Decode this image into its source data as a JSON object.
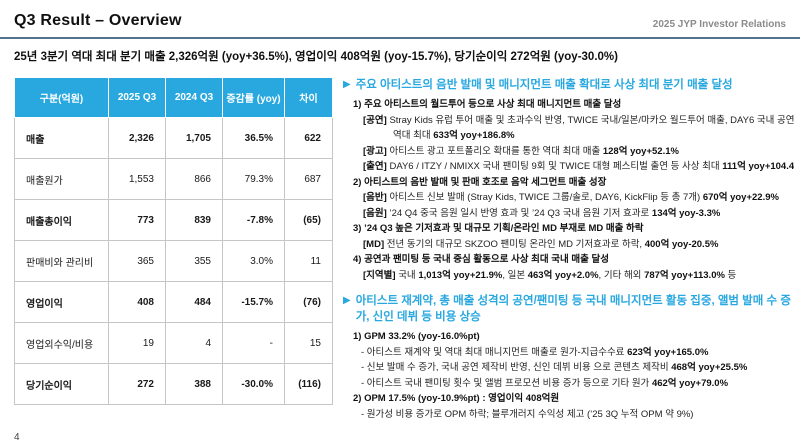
{
  "page": {
    "title": "Q3 Result – Overview",
    "ir_label": "2025 JYP Investor Relations",
    "subtitle": "25년 3분기 역대 최대 분기 매출 2,326억원 (yoy+36.5%), 영업이익 408억원 (yoy-15.7%), 당기순이익 272억원 (yoy-30.0%)",
    "page_number": "4"
  },
  "colors": {
    "accent_blue": "#29a8e0",
    "header_rule": "#53738f",
    "table_border": "#c6c6c6",
    "muted": "#8a8a8a"
  },
  "table": {
    "columns": [
      "구분(억원)",
      "2025 Q3",
      "2024 Q3",
      "증감률 (yoy)",
      "차이"
    ],
    "rows": [
      {
        "label": "매출",
        "bold": true,
        "values": [
          "2,326",
          "1,705",
          "36.5%",
          "622"
        ]
      },
      {
        "label": "매출원가",
        "bold": false,
        "values": [
          "1,553",
          "866",
          "79.3%",
          "687"
        ]
      },
      {
        "label": "매출총이익",
        "bold": true,
        "values": [
          "773",
          "839",
          "-7.8%",
          "(65)"
        ]
      },
      {
        "label": "판매비와 관리비",
        "bold": false,
        "values": [
          "365",
          "355",
          "3.0%",
          "11"
        ]
      },
      {
        "label": "영업이익",
        "bold": true,
        "values": [
          "408",
          "484",
          "-15.7%",
          "(76)"
        ]
      },
      {
        "label": "영업외수익/비용",
        "bold": false,
        "values": [
          "19",
          "4",
          "-",
          "15"
        ]
      },
      {
        "label": "당기순이익",
        "bold": true,
        "values": [
          "272",
          "388",
          "-30.0%",
          "(116)"
        ]
      }
    ]
  },
  "right": {
    "marker": "▶",
    "sections": [
      {
        "heading": "주요 아티스트의 음반 발매 및 매니지먼트 매출 확대로 사상 최대 분기 매출 달성",
        "lines": [
          {
            "type": "num",
            "parts": [
              {
                "t": "1) 주요 아티스트의 월드투어 등으로 사상 최대 매니지먼트 매출 달성",
                "b": true
              }
            ]
          },
          {
            "type": "tag",
            "parts": [
              {
                "t": "[공연] ",
                "b": true
              },
              {
                "t": "Stray Kids 유럽 투어 매출 및 초과수익 반영, TWICE 국내/일본/마카오 월드투어 매출, DAY6 국내 공연 등"
              }
            ]
          },
          {
            "type": "cont",
            "parts": [
              {
                "t": "역대 최대 "
              },
              {
                "t": "633억 yoy+186.8%",
                "b": true
              }
            ]
          },
          {
            "type": "tag",
            "parts": [
              {
                "t": "[광고] ",
                "b": true
              },
              {
                "t": "아티스트 광고 포트폴리오 확대를 통한 역대 최대 매출 "
              },
              {
                "t": "128억 yoy+52.1%",
                "b": true
              }
            ]
          },
          {
            "type": "tag",
            "parts": [
              {
                "t": "[출연] ",
                "b": true
              },
              {
                "t": "DAY6 / ITZY / NMIXX 국내 팬미팅 9회 및 TWICE 대형 페스티벌 출연 등 사상 최대 "
              },
              {
                "t": "111억 yoy+104.4%",
                "b": true
              }
            ]
          },
          {
            "type": "num",
            "parts": [
              {
                "t": "2) 아티스트의 음반 발매 및 판매 호조로 음악 세그먼트 매출 성장",
                "b": true
              }
            ]
          },
          {
            "type": "tag",
            "parts": [
              {
                "t": "[음반] ",
                "b": true
              },
              {
                "t": "아티스트 신보 발매 (Stray Kids, TWICE 그룹/솔로, DAY6, KickFlip 등 총 7개) "
              },
              {
                "t": "670억 yoy+22.9%",
                "b": true
              }
            ]
          },
          {
            "type": "tag",
            "parts": [
              {
                "t": "[음원] ",
                "b": true
              },
              {
                "t": "’24 Q4 중국 음원 일시 반영 효과 및 ’24 Q3 국내 음원 기저 효과로 "
              },
              {
                "t": "134억 yoy-3.3%",
                "b": true
              }
            ]
          },
          {
            "type": "num",
            "parts": [
              {
                "t": "3) ’24 Q3 높은 기저효과 및 대규모 기획/온라인 MD 부재로 MD 매출 하락",
                "b": true
              }
            ]
          },
          {
            "type": "tag",
            "parts": [
              {
                "t": "[MD] ",
                "b": true
              },
              {
                "t": "전년 동기의 대규모 SKZOO 팬미팅 온라인 MD 기저효과로 하락, "
              },
              {
                "t": "400억 yoy-20.5%",
                "b": true
              }
            ]
          },
          {
            "type": "num",
            "parts": [
              {
                "t": "4) 공연과 팬미팅 등 국내 중심 활동으로 사상 최대 국내 매출 달성",
                "b": true
              }
            ]
          },
          {
            "type": "tag",
            "parts": [
              {
                "t": "[지역별] ",
                "b": true
              },
              {
                "t": "국내 "
              },
              {
                "t": "1,013억 yoy+21.9%",
                "b": true
              },
              {
                "t": ", 일본 "
              },
              {
                "t": "463억 yoy+2.0%",
                "b": true
              },
              {
                "t": ", 기타 해외 "
              },
              {
                "t": "787억 yoy+113.0%",
                "b": true
              },
              {
                "t": " 등"
              }
            ]
          }
        ]
      },
      {
        "heading": "아티스트 재계약, 총 매출 성격의 공연/팬미팅 등 국내 매니지먼트 활동 집중, 앨범 발매 수 증가, 신인 데뷔 등 비용 상승",
        "lines": [
          {
            "type": "num",
            "parts": [
              {
                "t": "1) GPM 33.2% (yoy-16.0%pt)",
                "b": true
              }
            ]
          },
          {
            "type": "dash",
            "parts": [
              {
                "t": "- 아티스트 재계약 및 역대 최대 매니지먼트 매출로 원가-지급수수료 "
              },
              {
                "t": "623억 yoy+165.0%",
                "b": true
              }
            ]
          },
          {
            "type": "dash",
            "parts": [
              {
                "t": "- 신보 발매 수 증가, 국내 공연 제작비 반영, 신인 데뷔 비용 으로 콘텐츠 제작비 "
              },
              {
                "t": "468억 yoy+25.5%",
                "b": true
              }
            ]
          },
          {
            "type": "dash",
            "parts": [
              {
                "t": "- 아티스트 국내 팬미팅 횟수 및 앨범 프로모션 비용 증가 등으로 기타 원가 "
              },
              {
                "t": "462억 yoy+79.0%",
                "b": true
              }
            ]
          },
          {
            "type": "num",
            "parts": [
              {
                "t": "2) OPM 17.5% (yoy-10.9%pt)",
                "b": true
              },
              {
                "t": " : 영업이익 "
              },
              {
                "t": "408억원",
                "b": true
              }
            ]
          },
          {
            "type": "dash",
            "parts": [
              {
                "t": "- 원가성 비용 증가로 OPM 하락;  블루개러지 수익성 제고 (’25 3Q 누적 OPM 약 9%)"
              }
            ]
          }
        ]
      }
    ]
  }
}
